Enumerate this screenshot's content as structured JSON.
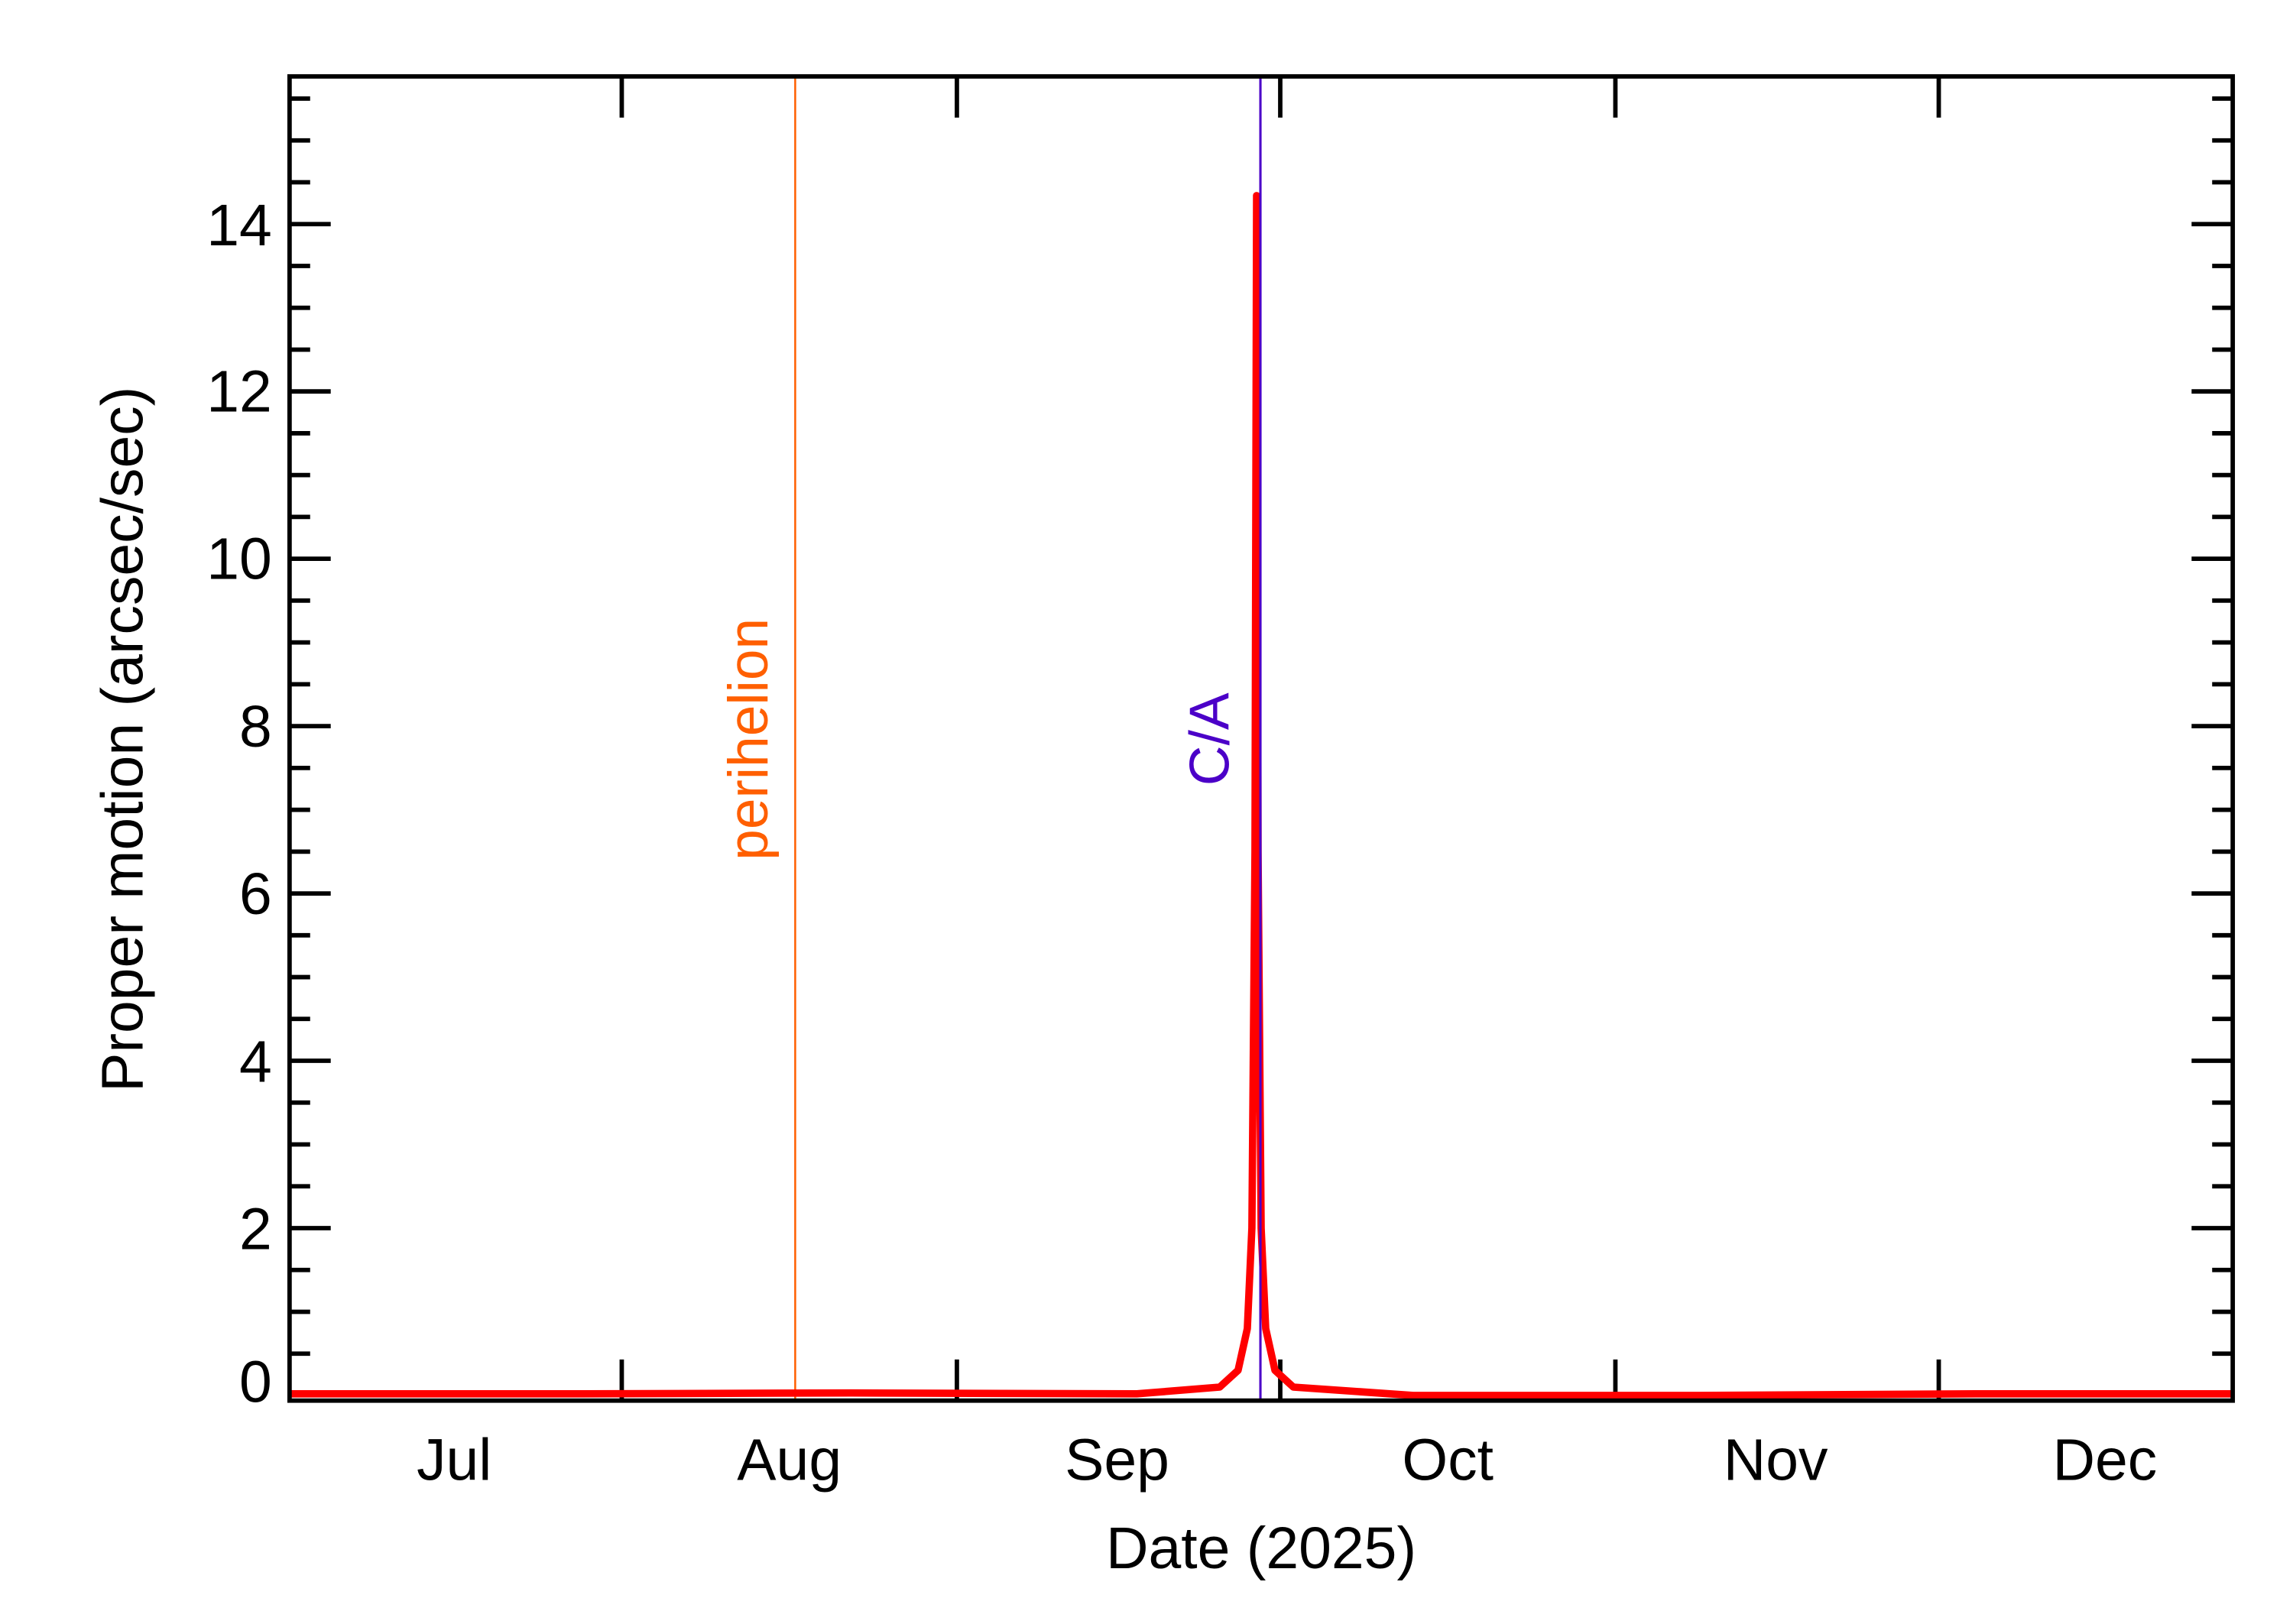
{
  "chart_data": {
    "type": "line",
    "title": "",
    "xlabel": "Date (2025)",
    "ylabel": "Proper motion (arcsec/sec)",
    "ylim": [
      0,
      15.76
    ],
    "yticks": [
      0,
      2,
      4,
      6,
      8,
      10,
      12,
      14
    ],
    "ytick_labels": [
      "0",
      "2",
      "4",
      "6",
      "8",
      "10",
      "12",
      "14"
    ],
    "y_minor_step": 0.5,
    "x_range": [
      "2025-06-01",
      "2025-12-29"
    ],
    "x_tick_labels": [
      "Jul",
      "Aug",
      "Sep",
      "Oct",
      "Nov",
      "Dec"
    ],
    "grid": false,
    "legend": null,
    "series": [
      {
        "name": "Proper motion",
        "color": "#ff0000",
        "x": [
          "2025-06-01",
          "2025-07-01",
          "2025-08-01",
          "2025-09-01",
          "2025-09-10",
          "2025-09-12",
          "2025-09-13",
          "2025-09-13T12:00",
          "2025-09-13T20:00",
          "2025-09-14",
          "2025-09-14T04:00",
          "2025-09-14T12:00",
          "2025-09-15",
          "2025-09-16",
          "2025-09-18",
          "2025-10-01",
          "2025-11-01",
          "2025-12-01",
          "2025-12-29"
        ],
        "values": [
          0.02,
          0.02,
          0.03,
          0.02,
          0.1,
          0.3,
          0.8,
          2.0,
          6.5,
          14.34,
          6.5,
          2.0,
          0.8,
          0.3,
          0.1,
          0.0,
          0.0,
          0.02,
          0.02
        ]
      }
    ],
    "annotations": [
      {
        "label": "perihelion",
        "date": "2025-08-01",
        "color": "#ff5f00",
        "type": "vline"
      },
      {
        "label": "C/A",
        "date": "2025-09-14",
        "color": "#4b00c8",
        "type": "vline"
      }
    ]
  },
  "labels": {
    "xlabel": "Date (2025)",
    "ylabel": "Proper motion (arcsec/sec)",
    "perihelion": "perihelion",
    "ca": "C/A",
    "months": [
      "Jul",
      "Aug",
      "Sep",
      "Oct",
      "Nov",
      "Dec"
    ],
    "yticks": [
      "0",
      "2",
      "4",
      "6",
      "8",
      "10",
      "12",
      "14"
    ]
  }
}
